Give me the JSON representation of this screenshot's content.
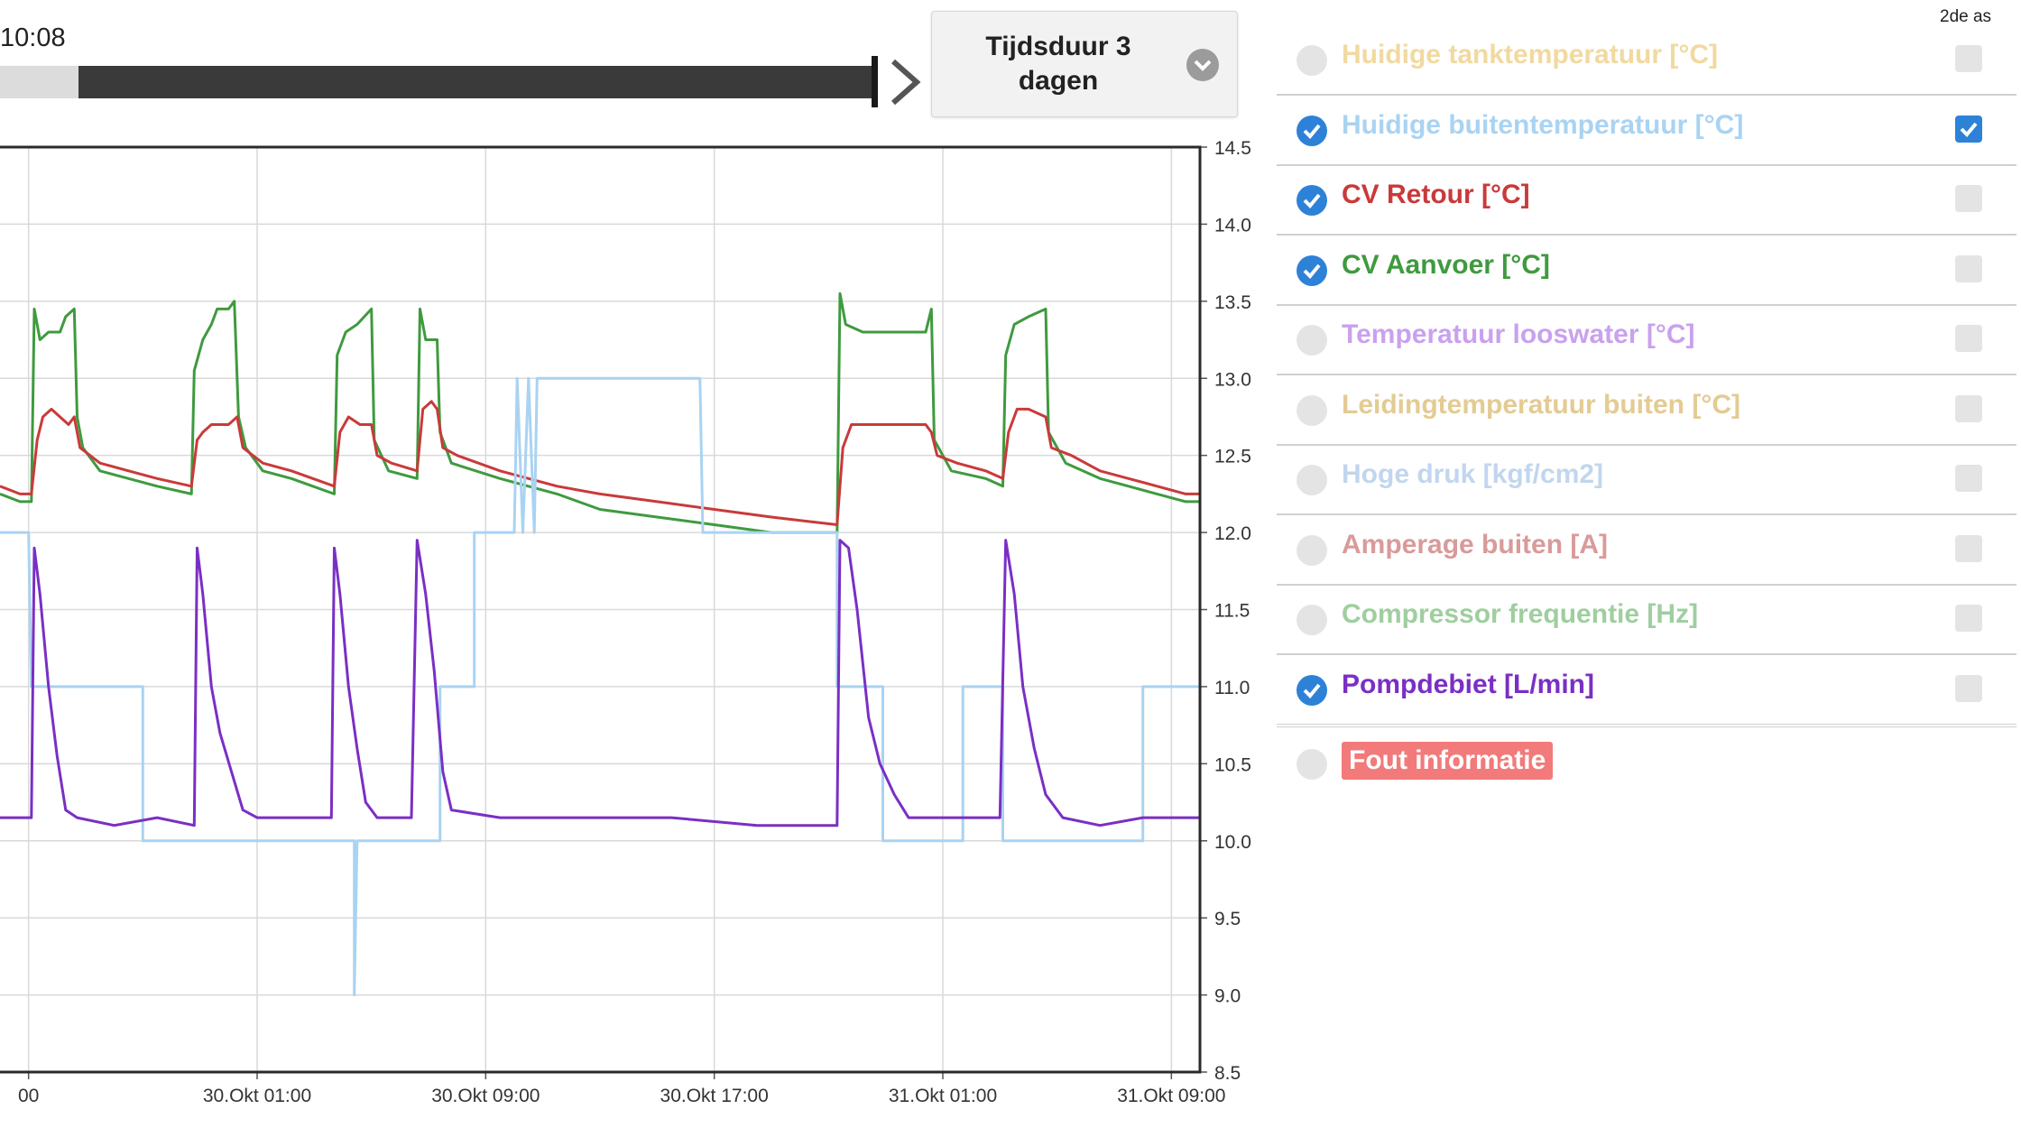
{
  "header": {
    "time_label": "10:08",
    "duration_label": "Tijdsduur 3 dagen",
    "slider_progress_fraction": 0.91
  },
  "legend": {
    "axis2_header": "2de as",
    "items": [
      {
        "label": "Huidige tanktemperatuur [°C]",
        "color": "#f1d9a0",
        "checked": false,
        "axis2": false
      },
      {
        "label": "Huidige buitentemperatuur [°C]",
        "color": "#a9d3f2",
        "checked": true,
        "axis2": true
      },
      {
        "label": "CV Retour [°C]",
        "color": "#c93a3a",
        "checked": true,
        "axis2": false
      },
      {
        "label": "CV Aanvoer [°C]",
        "color": "#3f9a3f",
        "checked": true,
        "axis2": false
      },
      {
        "label": "Temperatuur looswater [°C]",
        "color": "#c9a1ee",
        "checked": false,
        "axis2": false
      },
      {
        "label": "Leidingtemperatuur buiten [°C]",
        "color": "#e3cb93",
        "checked": false,
        "axis2": false
      },
      {
        "label": "Hoge druk [kgf/cm2]",
        "color": "#c1d6ee",
        "checked": false,
        "axis2": false
      },
      {
        "label": "Amperage buiten [A]",
        "color": "#d99a9a",
        "checked": false,
        "axis2": false
      },
      {
        "label": "Compressor frequentie [Hz]",
        "color": "#9fce9f",
        "checked": false,
        "axis2": false
      },
      {
        "label": "Pompdebiet [L/min]",
        "color": "#7a2fc4",
        "checked": true,
        "axis2": false
      }
    ],
    "error": {
      "label": "Fout informatie",
      "color": "#f27a7a",
      "checked": false
    }
  },
  "chart_data": {
    "type": "line",
    "title": "",
    "xlabel": "",
    "ylabel": "",
    "x_unit": "hours relative to 30.Okt 00:00",
    "xlim": [
      -8,
      34
    ],
    "x_ticks": [
      {
        "x": -7,
        "label": "00"
      },
      {
        "x": 1,
        "label": "30.Okt 01:00"
      },
      {
        "x": 9,
        "label": "30.Okt 09:00"
      },
      {
        "x": 17,
        "label": "30.Okt 17:00"
      },
      {
        "x": 25,
        "label": "31.Okt 01:00"
      },
      {
        "x": 33,
        "label": "31.Okt 09:00"
      }
    ],
    "right_axis": {
      "ylim": [
        8.5,
        14.5
      ],
      "ticks": [
        "8.5",
        "9.0",
        "9.5",
        "10.0",
        "10.5",
        "11.0",
        "11.5",
        "12.0",
        "12.5",
        "13.0",
        "13.5",
        "14.0",
        "14.5"
      ]
    },
    "series": [
      {
        "name": "CV Aanvoer [°C]",
        "color": "#3f9a3f",
        "points": [
          [
            -8,
            12.25
          ],
          [
            -7.3,
            12.2
          ],
          [
            -6.9,
            12.2
          ],
          [
            -6.8,
            13.45
          ],
          [
            -6.6,
            13.25
          ],
          [
            -6.3,
            13.3
          ],
          [
            -5.9,
            13.3
          ],
          [
            -5.7,
            13.4
          ],
          [
            -5.4,
            13.45
          ],
          [
            -5.3,
            12.75
          ],
          [
            -5.1,
            12.55
          ],
          [
            -4.5,
            12.4
          ],
          [
            -3.5,
            12.35
          ],
          [
            -2.5,
            12.3
          ],
          [
            -1.3,
            12.25
          ],
          [
            -1.2,
            13.05
          ],
          [
            -0.9,
            13.25
          ],
          [
            -0.6,
            13.35
          ],
          [
            -0.4,
            13.45
          ],
          [
            0,
            13.45
          ],
          [
            0.2,
            13.5
          ],
          [
            0.35,
            12.75
          ],
          [
            0.6,
            12.55
          ],
          [
            1.2,
            12.4
          ],
          [
            2.2,
            12.35
          ],
          [
            3.7,
            12.25
          ],
          [
            3.8,
            13.15
          ],
          [
            4.1,
            13.3
          ],
          [
            4.5,
            13.35
          ],
          [
            5.0,
            13.45
          ],
          [
            5.1,
            12.6
          ],
          [
            5.6,
            12.4
          ],
          [
            6.6,
            12.35
          ],
          [
            6.7,
            13.45
          ],
          [
            6.9,
            13.25
          ],
          [
            7.3,
            13.25
          ],
          [
            7.4,
            12.65
          ],
          [
            7.8,
            12.45
          ],
          [
            9.5,
            12.35
          ],
          [
            11.5,
            12.25
          ],
          [
            13.0,
            12.15
          ],
          [
            15.0,
            12.1
          ],
          [
            17.0,
            12.05
          ],
          [
            19.0,
            12.0
          ],
          [
            21.3,
            12.0
          ],
          [
            21.4,
            13.55
          ],
          [
            21.6,
            13.35
          ],
          [
            22.2,
            13.3
          ],
          [
            23.5,
            13.3
          ],
          [
            24.4,
            13.3
          ],
          [
            24.6,
            13.45
          ],
          [
            24.7,
            12.6
          ],
          [
            25.3,
            12.4
          ],
          [
            26.5,
            12.35
          ],
          [
            27.1,
            12.3
          ],
          [
            27.2,
            13.15
          ],
          [
            27.5,
            13.35
          ],
          [
            28.0,
            13.4
          ],
          [
            28.6,
            13.45
          ],
          [
            28.7,
            12.65
          ],
          [
            29.3,
            12.45
          ],
          [
            30.5,
            12.35
          ],
          [
            31.5,
            12.3
          ],
          [
            32.5,
            12.25
          ],
          [
            33.5,
            12.2
          ],
          [
            34,
            12.2
          ]
        ]
      },
      {
        "name": "CV Retour [°C]",
        "color": "#c93a3a",
        "points": [
          [
            -8,
            12.3
          ],
          [
            -7.3,
            12.25
          ],
          [
            -6.9,
            12.25
          ],
          [
            -6.7,
            12.6
          ],
          [
            -6.5,
            12.75
          ],
          [
            -6.2,
            12.8
          ],
          [
            -5.9,
            12.75
          ],
          [
            -5.6,
            12.7
          ],
          [
            -5.4,
            12.75
          ],
          [
            -5.2,
            12.55
          ],
          [
            -4.5,
            12.45
          ],
          [
            -3.5,
            12.4
          ],
          [
            -2.5,
            12.35
          ],
          [
            -1.3,
            12.3
          ],
          [
            -1.1,
            12.6
          ],
          [
            -0.9,
            12.65
          ],
          [
            -0.6,
            12.7
          ],
          [
            -0.3,
            12.7
          ],
          [
            0,
            12.7
          ],
          [
            0.3,
            12.75
          ],
          [
            0.5,
            12.55
          ],
          [
            1.2,
            12.45
          ],
          [
            2.2,
            12.4
          ],
          [
            3.7,
            12.3
          ],
          [
            3.9,
            12.65
          ],
          [
            4.2,
            12.75
          ],
          [
            4.6,
            12.7
          ],
          [
            5.0,
            12.7
          ],
          [
            5.2,
            12.5
          ],
          [
            5.7,
            12.45
          ],
          [
            6.6,
            12.4
          ],
          [
            6.8,
            12.8
          ],
          [
            7.1,
            12.85
          ],
          [
            7.3,
            12.8
          ],
          [
            7.5,
            12.55
          ],
          [
            8.0,
            12.5
          ],
          [
            9.5,
            12.4
          ],
          [
            11.5,
            12.3
          ],
          [
            13.0,
            12.25
          ],
          [
            15.0,
            12.2
          ],
          [
            17.0,
            12.15
          ],
          [
            19.0,
            12.1
          ],
          [
            21.3,
            12.05
          ],
          [
            21.5,
            12.55
          ],
          [
            21.8,
            12.7
          ],
          [
            22.3,
            12.7
          ],
          [
            23.5,
            12.7
          ],
          [
            24.4,
            12.7
          ],
          [
            24.6,
            12.65
          ],
          [
            24.8,
            12.5
          ],
          [
            25.5,
            12.45
          ],
          [
            26.5,
            12.4
          ],
          [
            27.1,
            12.35
          ],
          [
            27.3,
            12.65
          ],
          [
            27.6,
            12.8
          ],
          [
            28.0,
            12.8
          ],
          [
            28.6,
            12.75
          ],
          [
            28.8,
            12.55
          ],
          [
            29.5,
            12.5
          ],
          [
            30.5,
            12.4
          ],
          [
            31.5,
            12.35
          ],
          [
            32.5,
            12.3
          ],
          [
            33.5,
            12.25
          ],
          [
            34,
            12.25
          ]
        ]
      },
      {
        "name": "Huidige buitentemperatuur [°C]",
        "color": "#a9d3f2",
        "points": [
          [
            -8,
            12.0
          ],
          [
            -7.0,
            12.0
          ],
          [
            -6.9,
            11.0
          ],
          [
            -3.0,
            11.0
          ],
          [
            -3.0,
            10.0
          ],
          [
            0.1,
            10.0
          ],
          [
            0.1,
            10.0
          ],
          [
            2.6,
            10.0
          ],
          [
            2.6,
            10.0
          ],
          [
            4.4,
            10.0
          ],
          [
            4.4,
            9.0
          ],
          [
            4.5,
            10.0
          ],
          [
            7.4,
            10.0
          ],
          [
            7.4,
            11.0
          ],
          [
            8.6,
            11.0
          ],
          [
            8.6,
            12.0
          ],
          [
            10.0,
            12.0
          ],
          [
            10.1,
            13.0
          ],
          [
            10.3,
            12.0
          ],
          [
            10.5,
            13.0
          ],
          [
            10.7,
            12.0
          ],
          [
            10.8,
            13.0
          ],
          [
            16.5,
            13.0
          ],
          [
            16.6,
            12.0
          ],
          [
            21.3,
            12.0
          ],
          [
            21.3,
            11.0
          ],
          [
            22.9,
            11.0
          ],
          [
            22.9,
            10.0
          ],
          [
            25.7,
            10.0
          ],
          [
            25.7,
            11.0
          ],
          [
            27.1,
            11.0
          ],
          [
            27.1,
            10.0
          ],
          [
            32.0,
            10.0
          ],
          [
            32.0,
            11.0
          ],
          [
            34,
            11.0
          ]
        ]
      },
      {
        "name": "Pompdebiet [L/min]",
        "color": "#7a2fc4",
        "points": [
          [
            -8,
            10.15
          ],
          [
            -7.3,
            10.15
          ],
          [
            -6.9,
            10.15
          ],
          [
            -6.8,
            11.9
          ],
          [
            -6.6,
            11.6
          ],
          [
            -6.3,
            11.0
          ],
          [
            -6.0,
            10.55
          ],
          [
            -5.7,
            10.2
          ],
          [
            -5.3,
            10.15
          ],
          [
            -4.0,
            10.1
          ],
          [
            -2.5,
            10.15
          ],
          [
            -1.2,
            10.1
          ],
          [
            -1.1,
            11.9
          ],
          [
            -0.9,
            11.6
          ],
          [
            -0.6,
            11.0
          ],
          [
            -0.3,
            10.7
          ],
          [
            0.1,
            10.45
          ],
          [
            0.5,
            10.2
          ],
          [
            1.0,
            10.15
          ],
          [
            2.5,
            10.15
          ],
          [
            3.6,
            10.15
          ],
          [
            3.7,
            11.9
          ],
          [
            3.9,
            11.6
          ],
          [
            4.2,
            11.0
          ],
          [
            4.5,
            10.6
          ],
          [
            4.8,
            10.25
          ],
          [
            5.2,
            10.15
          ],
          [
            6.4,
            10.15
          ],
          [
            6.6,
            11.95
          ],
          [
            6.9,
            11.6
          ],
          [
            7.2,
            11.1
          ],
          [
            7.5,
            10.45
          ],
          [
            7.8,
            10.2
          ],
          [
            9.5,
            10.15
          ],
          [
            12.5,
            10.15
          ],
          [
            15.5,
            10.15
          ],
          [
            18.5,
            10.1
          ],
          [
            21.3,
            10.1
          ],
          [
            21.4,
            11.95
          ],
          [
            21.7,
            11.9
          ],
          [
            22.0,
            11.5
          ],
          [
            22.4,
            10.8
          ],
          [
            22.8,
            10.5
          ],
          [
            23.3,
            10.3
          ],
          [
            23.8,
            10.15
          ],
          [
            27.0,
            10.15
          ],
          [
            27.2,
            11.95
          ],
          [
            27.5,
            11.6
          ],
          [
            27.8,
            11.0
          ],
          [
            28.2,
            10.6
          ],
          [
            28.6,
            10.3
          ],
          [
            29.2,
            10.15
          ],
          [
            30.5,
            10.1
          ],
          [
            32.0,
            10.15
          ],
          [
            33.5,
            10.15
          ],
          [
            34,
            10.15
          ]
        ]
      }
    ]
  }
}
